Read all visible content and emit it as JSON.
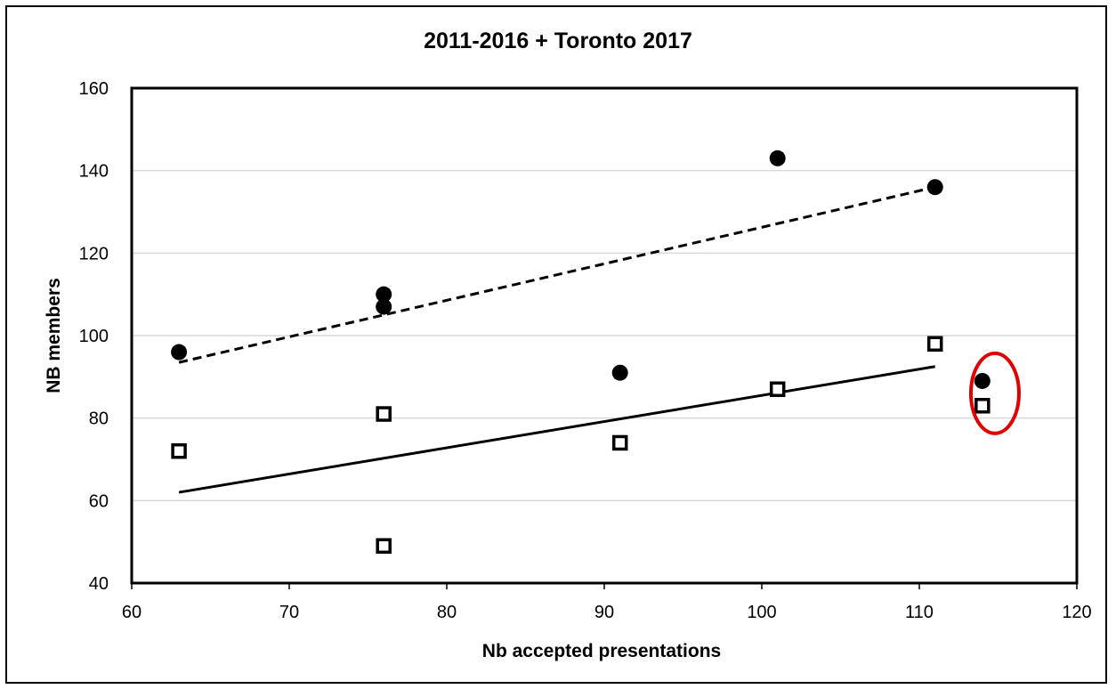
{
  "chart_data": {
    "type": "scatter",
    "title": "2011-2016 + Toronto 2017",
    "xlabel": "Nb accepted presentations",
    "ylabel": "NB members",
    "xlim": [
      60,
      120
    ],
    "ylim": [
      40,
      160
    ],
    "xticks": [
      60,
      70,
      80,
      90,
      100,
      110,
      120
    ],
    "yticks": [
      40,
      60,
      80,
      100,
      120,
      140,
      160
    ],
    "grid": "horizontal",
    "series": [
      {
        "marker": "filled-circle",
        "points": [
          [
            63,
            96
          ],
          [
            76,
            110
          ],
          [
            76,
            107
          ],
          [
            91,
            91
          ],
          [
            101,
            143
          ],
          [
            111,
            136
          ],
          [
            114,
            89
          ]
        ]
      },
      {
        "marker": "open-square",
        "points": [
          [
            63,
            72
          ],
          [
            76,
            81
          ],
          [
            76,
            49
          ],
          [
            91,
            74
          ],
          [
            101,
            87
          ],
          [
            111,
            98
          ],
          [
            114,
            83
          ]
        ]
      }
    ],
    "trendlines": [
      {
        "style": "dashed",
        "x": [
          63,
          111
        ],
        "y": [
          93.5,
          136
        ]
      },
      {
        "style": "solid",
        "x": [
          63,
          111
        ],
        "y": [
          62,
          92.5
        ]
      }
    ],
    "annotation": {
      "shape": "ellipse",
      "color": "#e00000",
      "highlights_x": 114,
      "center": [
        114.8,
        86
      ]
    }
  }
}
